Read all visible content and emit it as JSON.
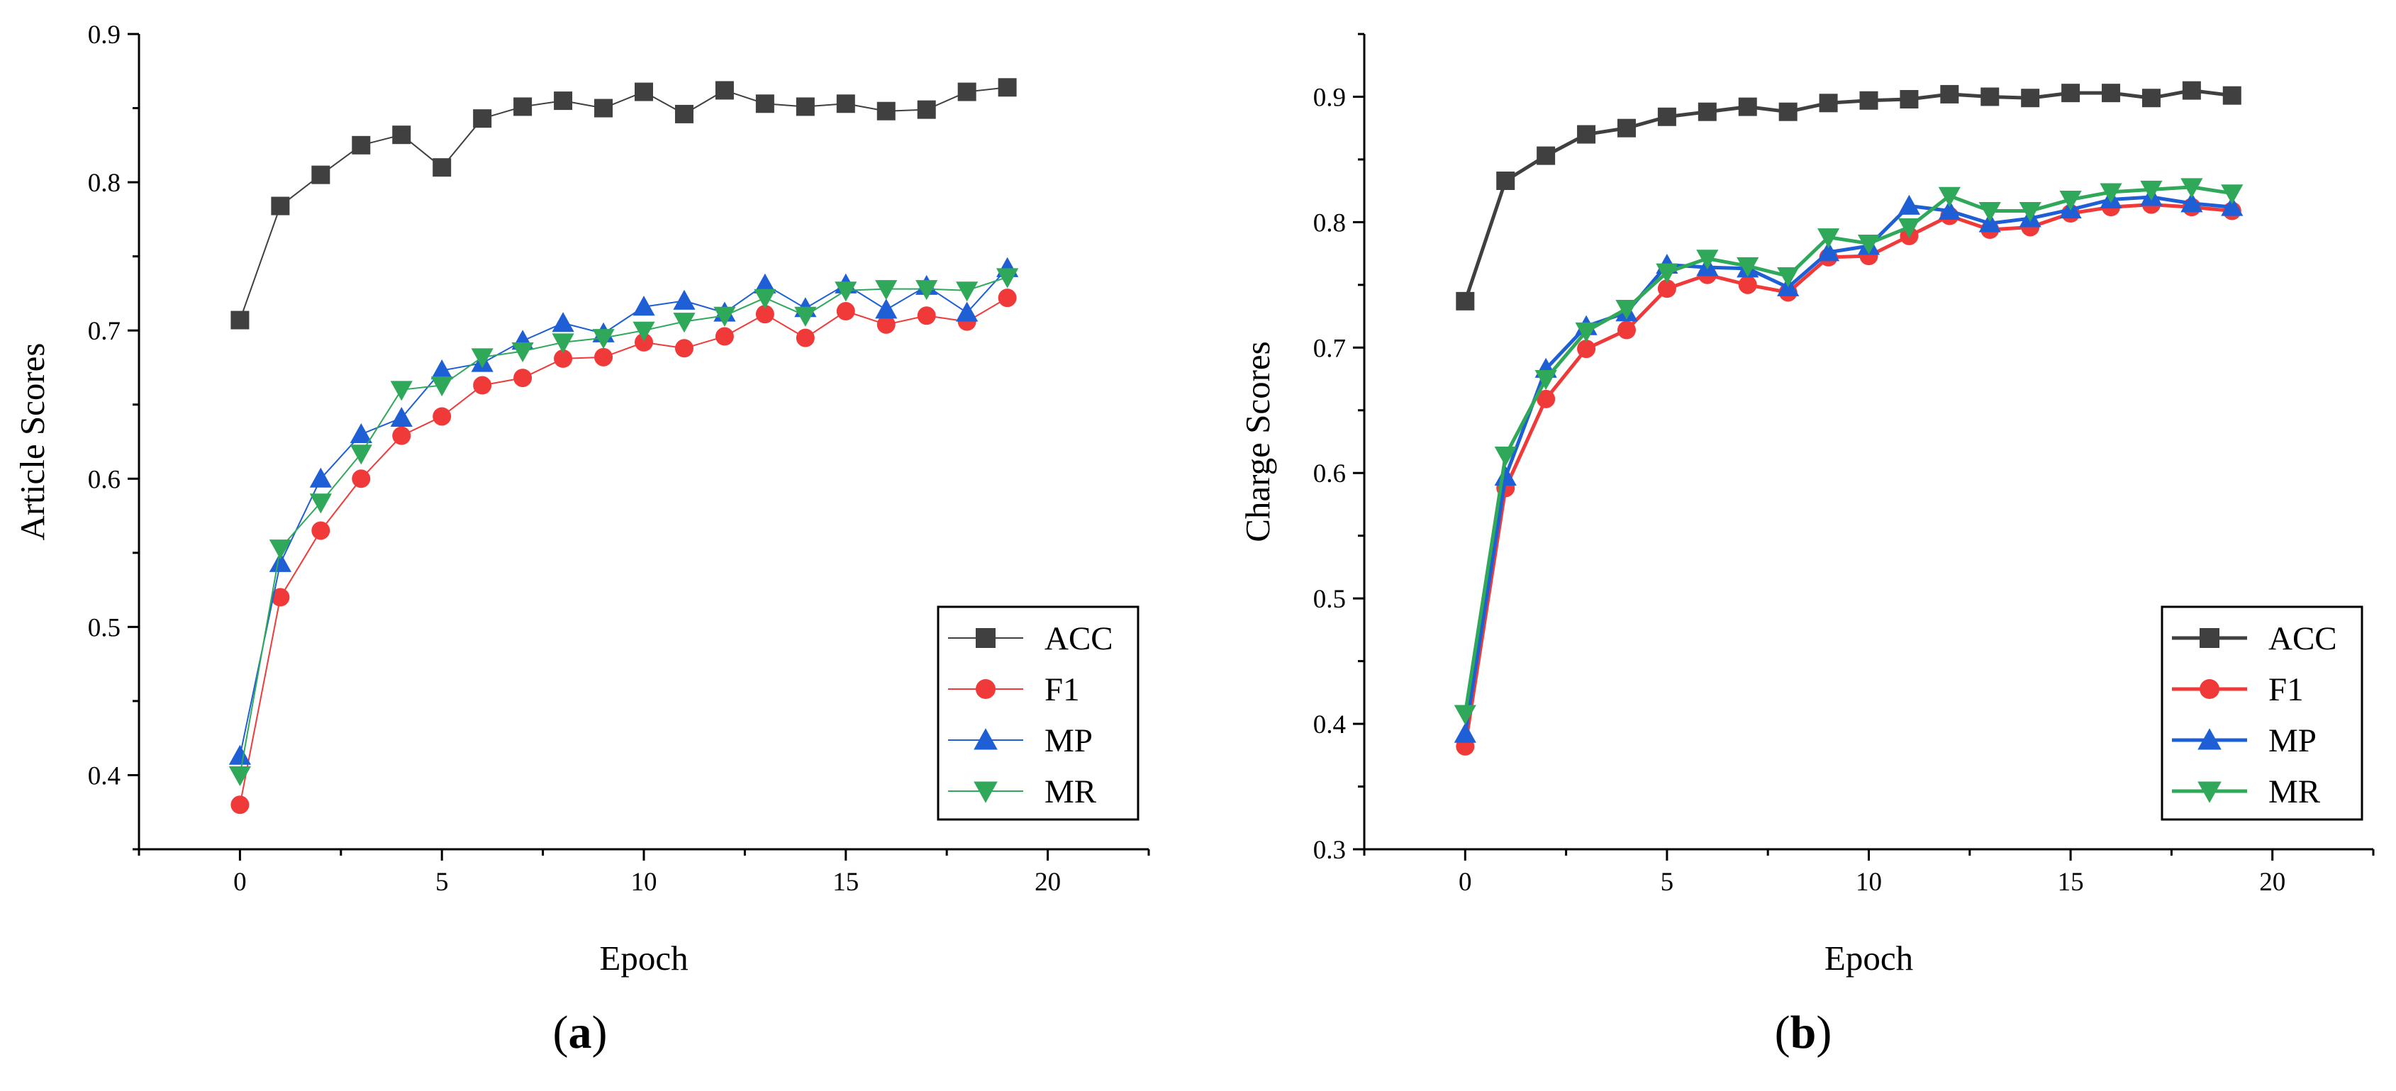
{
  "chart_data": [
    {
      "type": "line",
      "panel_label": "(a)",
      "title": "",
      "xlabel": "Epoch",
      "ylabel": "Article Scores",
      "xlim": [
        -2.5,
        22.5
      ],
      "ylim": [
        0.35,
        0.9
      ],
      "xticks": [
        0,
        5,
        10,
        15,
        20
      ],
      "xtick_labels": [
        "0",
        "5",
        "10",
        "15",
        "20"
      ],
      "yticks": [
        0.4,
        0.5,
        0.6,
        0.7,
        0.8,
        0.9
      ],
      "ytick_labels": [
        "0.4",
        "0.5",
        "0.6",
        "0.7",
        "0.8",
        "0.9"
      ],
      "grid": false,
      "legend_position": "bottom-right",
      "x": [
        0,
        1,
        2,
        3,
        4,
        5,
        6,
        7,
        8,
        9,
        10,
        11,
        12,
        13,
        14,
        15,
        16,
        17,
        18,
        19
      ],
      "series": [
        {
          "name": "ACC",
          "color": "#404040",
          "marker": "square",
          "values": [
            0.707,
            0.784,
            0.805,
            0.825,
            0.832,
            0.81,
            0.843,
            0.851,
            0.855,
            0.85,
            0.861,
            0.846,
            0.862,
            0.853,
            0.851,
            0.853,
            0.848,
            0.849,
            0.861,
            0.864
          ]
        },
        {
          "name": "F1",
          "color": "#f03a3a",
          "marker": "circle",
          "values": [
            0.38,
            0.52,
            0.565,
            0.6,
            0.629,
            0.642,
            0.663,
            0.668,
            0.681,
            0.682,
            0.692,
            0.688,
            0.696,
            0.711,
            0.695,
            0.713,
            0.704,
            0.71,
            0.706,
            0.722
          ]
        },
        {
          "name": "MP",
          "color": "#1f5fd6",
          "marker": "triangle-up",
          "values": [
            0.413,
            0.543,
            0.6,
            0.63,
            0.641,
            0.673,
            0.678,
            0.693,
            0.705,
            0.698,
            0.716,
            0.72,
            0.712,
            0.731,
            0.715,
            0.731,
            0.714,
            0.73,
            0.712,
            0.742
          ]
        },
        {
          "name": "MR",
          "color": "#2fa85a",
          "marker": "triangle-down",
          "values": [
            0.4,
            0.553,
            0.584,
            0.617,
            0.66,
            0.663,
            0.682,
            0.686,
            0.692,
            0.695,
            0.7,
            0.706,
            0.71,
            0.722,
            0.71,
            0.727,
            0.728,
            0.728,
            0.727,
            0.736
          ]
        }
      ]
    },
    {
      "type": "line",
      "panel_label": "(b)",
      "title": "",
      "xlabel": "Epoch",
      "ylabel": "Charge Scores",
      "xlim": [
        -2.5,
        22.5
      ],
      "ylim": [
        0.3,
        0.95
      ],
      "xticks": [
        0,
        5,
        10,
        15,
        20
      ],
      "xtick_labels": [
        "0",
        "5",
        "10",
        "15",
        "20"
      ],
      "yticks": [
        0.3,
        0.4,
        0.5,
        0.6,
        0.7,
        0.8,
        0.9
      ],
      "ytick_labels": [
        "0.3",
        "0.4",
        "0.5",
        "0.6",
        "0.7",
        "0.8",
        "0.9"
      ],
      "grid": false,
      "legend_position": "bottom-right",
      "x": [
        0,
        1,
        2,
        3,
        4,
        5,
        6,
        7,
        8,
        9,
        10,
        11,
        12,
        13,
        14,
        15,
        16,
        17,
        18,
        19
      ],
      "series": [
        {
          "name": "ACC",
          "color": "#404040",
          "marker": "square",
          "values": [
            0.737,
            0.833,
            0.853,
            0.87,
            0.875,
            0.884,
            0.888,
            0.892,
            0.888,
            0.895,
            0.897,
            0.898,
            0.902,
            0.9,
            0.899,
            0.903,
            0.903,
            0.899,
            0.905,
            0.901
          ]
        },
        {
          "name": "F1",
          "color": "#f03a3a",
          "marker": "circle",
          "values": [
            0.382,
            0.588,
            0.659,
            0.699,
            0.714,
            0.747,
            0.758,
            0.75,
            0.744,
            0.772,
            0.773,
            0.789,
            0.805,
            0.794,
            0.796,
            0.807,
            0.812,
            0.814,
            0.812,
            0.809
          ]
        },
        {
          "name": "MP",
          "color": "#1f5fd6",
          "marker": "triangle-up",
          "values": [
            0.392,
            0.597,
            0.683,
            0.717,
            0.728,
            0.766,
            0.764,
            0.763,
            0.748,
            0.776,
            0.781,
            0.813,
            0.809,
            0.799,
            0.803,
            0.81,
            0.818,
            0.82,
            0.815,
            0.812
          ]
        },
        {
          "name": "MR",
          "color": "#2fa85a",
          "marker": "triangle-down",
          "values": [
            0.408,
            0.614,
            0.675,
            0.713,
            0.731,
            0.76,
            0.771,
            0.765,
            0.757,
            0.788,
            0.783,
            0.796,
            0.821,
            0.809,
            0.809,
            0.818,
            0.824,
            0.826,
            0.828,
            0.823
          ]
        }
      ]
    }
  ]
}
